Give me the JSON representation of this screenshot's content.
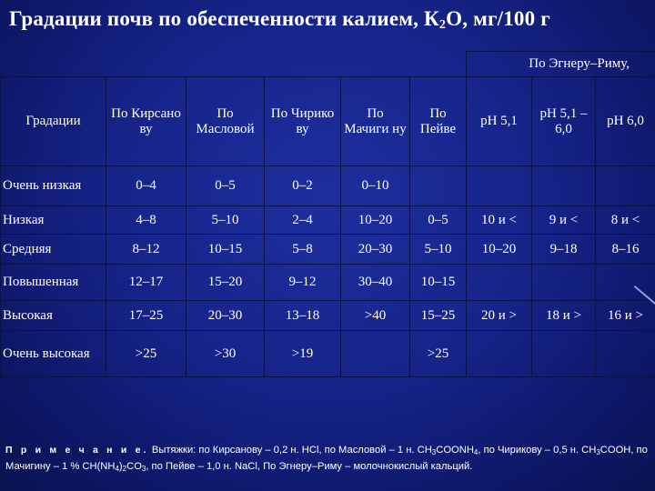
{
  "title": {
    "part1": "Градации почв по обеспеченности калием, К",
    "sub1": "2",
    "part2": "О, мг/100 г"
  },
  "table": {
    "egner_header": "По Эгнеру–Риму,",
    "headers": {
      "gradation": "Градации",
      "kirsanov": "По Кирсано ву",
      "maslova": "По Масловой",
      "chirikov": "По Чирико ву",
      "machigin": "По Мачиги ну",
      "peive": "По Пейве",
      "ph51": "рН 5,1",
      "ph51_60": "рН 5,1 – 6,0",
      "ph60": "рН 6,0"
    },
    "rows": [
      [
        "Очень низкая",
        "0–4",
        "0–5",
        "0–2",
        "0–10",
        "",
        "",
        "",
        ""
      ],
      [
        "Низкая",
        "4–8",
        "5–10",
        "2–4",
        "10–20",
        "0–5",
        "10 и <",
        "9 и <",
        "8 и <"
      ],
      [
        "Средняя",
        "8–12",
        "10–15",
        "5–8",
        "20–30",
        "5–10",
        "10–20",
        "9–18",
        "8–16"
      ],
      [
        "Повышенная",
        "12–17",
        "15–20",
        "9–12",
        "30–40",
        "10–15",
        "",
        "",
        ""
      ],
      [
        "Высокая",
        "17–25",
        "20–30",
        "13–18",
        ">40",
        "15–25",
        "20 и >",
        "18 и >",
        "16 и >"
      ],
      [
        "Очень высокая",
        ">25",
        ">30",
        ">19",
        "",
        ">25",
        "",
        "",
        ""
      ]
    ]
  },
  "note": {
    "lead": "П р и м е ч а н и е.",
    "t1": " Вытяжки: по Кирсанову – 0,2 н. HCl, по Масловой – 1 н. CH",
    "s1": "3",
    "t2": "COONH",
    "s2": "4",
    "t3": ", по Чирикову – 0,5 н. CH",
    "s3": "3",
    "t4": "COOH, по Мачигину – 1 % CH(NH",
    "s4": "4",
    "t5": ")",
    "s5": "2",
    "t6": "CO",
    "s6": "3",
    "t7": ", по Пейве – 1,0 н. NaCl, По Эгнеру–Риму – молочнокислый кальций."
  }
}
